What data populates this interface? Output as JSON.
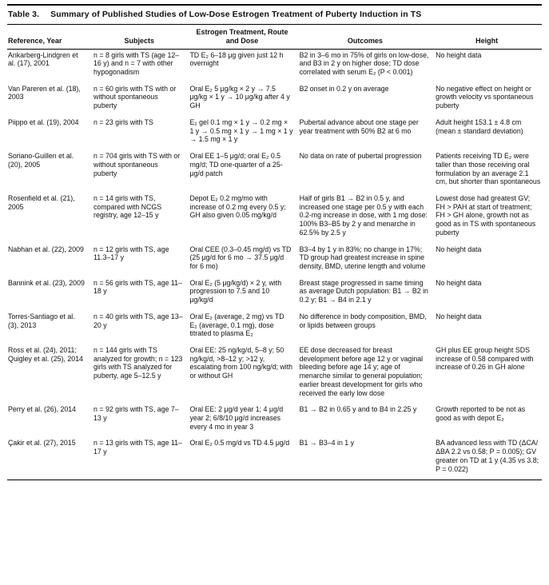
{
  "table": {
    "caption_label": "Table 3.",
    "caption_title": "Summary of Published Studies of Low-Dose Estrogen Treatment of Puberty Induction in TS",
    "columns": [
      "Reference, Year",
      "Subjects",
      "Estrogen Treatment, Route and Dose",
      "Outcomes",
      "Height"
    ],
    "rows": [
      {
        "reference": "Ankarberg-Lindgren et al. (17), 2001",
        "subjects": "n = 8 girls with TS (age 12–16 y) and n = 7 with other hypogonadism",
        "treatment": "TD E₂ 6–18 μg given just 12 h overnight",
        "outcomes": "B2 in 3–6 mo in 75% of girls on low-dose, and B3 in 2 y on higher dose; TD dose correlated with serum E₂ (P < 0.001)",
        "height": "No height data"
      },
      {
        "reference": "Van Pareren et al. (18), 2003",
        "subjects": "n = 60 girls with TS with or without spontaneous puberty",
        "treatment": "Oral E₂ 5 μg/kg × 2 y → 7.5 μg/kg × 1 y → 10 μg/kg after 4 y GH",
        "outcomes": "B2 onset in 0.2 y on average",
        "height": "No negative effect on height or growth velocity vs spontaneous puberty"
      },
      {
        "reference": "Piippo et al. (19), 2004",
        "subjects": "n = 23 girls with TS",
        "treatment": "E₂ gel 0.1 mg × 1 y → 0.2 mg × 1 y → 0.5 mg × 1 y → 1 mg × 1 y → 1.5 mg × 1 y",
        "outcomes": "Pubertal advance about one stage per year treatment with 50% B2 at 6 mo",
        "height": "Adult height 153.1 ± 4.8 cm (mean ± standard deviation)"
      },
      {
        "reference": "Soriano-Guillen et al. (20), 2005",
        "subjects": "n = 704 girls with TS with or without spontaneous puberty",
        "treatment": "Oral EE 1–5 μg/d; oral E₂ 0.5 mg/d; TD one-quarter of a 25-μg/d patch",
        "outcomes": "No data on rate of pubertal progression",
        "height": "Patients receiving TD E₂ were taller than those receiving oral formulation by an average 2.1 cm, but shorter than spontaneous"
      },
      {
        "reference": "Rosenfield et al. (21), 2005",
        "subjects": "n = 14 girls with TS, compared with NCGS registry, age 12–15 y",
        "treatment": "Depot E₂ 0.2 mg/mo with increase of 0.2 mg every 0.5 y; GH also given 0.05 mg/kg/d",
        "outcomes": "Half of girls B1 → B2 in 0.5 y, and increased one stage per 0.5 y with each 0.2-mg increase in dose, with 1 mg dose: 100% B3–B5 by 2 y and menarche in 62.5% by 2.5 y",
        "height": "Lowest dose had greatest GV; FH > PAH at start of treatment; FH > GH alone, growth not as good as in TS with spontaneous puberty"
      },
      {
        "reference": "Nabhan et al. (22), 2009",
        "subjects": "n = 12 girls with TS, age 11.3–17 y",
        "treatment": "Oral CEE (0.3–0.45 mg/d) vs TD (25 μg/d for 6 mo → 37.5 μg/d for 6 mo)",
        "outcomes": "B3–4 by 1 y in 83%; no change in 17%; TD group had greatest increase in spine density, BMD, uterine length and volume",
        "height": "No height data"
      },
      {
        "reference": "Bannink et al. (23), 2009",
        "subjects": "n = 56 girls with TS, age 11–18 y",
        "treatment": "Oral E₂ (5 μg/kg/d) × 2 y, with progression to 7.5 and 10 μg/kg/d",
        "outcomes": "Breast stage progressed in same timing as average Dutch population: B1 → B2 in 0.2 y; B1 → B4 in 2.1 y",
        "height": "No height data"
      },
      {
        "reference": "Torres-Santiago et al. (3), 2013",
        "subjects": "n = 40 girls with TS, age 13–20 y",
        "treatment": "Oral E₂ (average, 2 mg) vs TD E₂ (average, 0.1 mg), dose titrated to plasma E₂",
        "outcomes": "No difference in body composition, BMD, or lipids between groups",
        "height": "No height data"
      },
      {
        "reference": "Ross et al. (24), 2011; Quigley et al. (25), 2014",
        "subjects": "n = 144 girls with TS analyzed for growth; n = 123 girls with TS analyzed for puberty, age 5–12.5 y",
        "treatment": "Oral EE: 25 ng/kg/d, 5–8 y; 50 ng/kg/d, >8–12 y; >12 y, escalating from 100 ng/kg/d; with or without GH",
        "outcomes": "EE dose decreased for breast development before age 12 y or vaginal bleeding before age 14 y; age of menarche similar to general population; earlier breast development for girls who received the early low dose",
        "height": "GH plus EE group height SDS increase of 0.58 compared with increase of 0.26 in GH alone"
      },
      {
        "reference": "Perry et al. (26), 2014",
        "subjects": "n = 92 girls with TS, age 7–13 y",
        "treatment": "Oral EE: 2 μg/d year 1; 4 μg/d year 2; 6/8/10 μg/d increases every 4 mo in year 3",
        "outcomes": "B1 → B2 in 0.65 y and to B4 in 2.25 y",
        "height": "Growth reported to be not as good as with depot E₂"
      },
      {
        "reference": "Çakir et al. (27), 2015",
        "subjects": "n = 13 girls with TS, age 11–17 y",
        "treatment": "Oral E₂ 0.5 mg/d vs TD 4.5 μg/d",
        "outcomes": "B1 → B3–4 in 1 y",
        "height": "BA advanced less with TD (ΔCA/ΔBA 2.2 vs 0.58; P = 0.005); GV greater on TD at 1 y (4.35 vs 3.8; P = 0.022)"
      }
    ]
  }
}
